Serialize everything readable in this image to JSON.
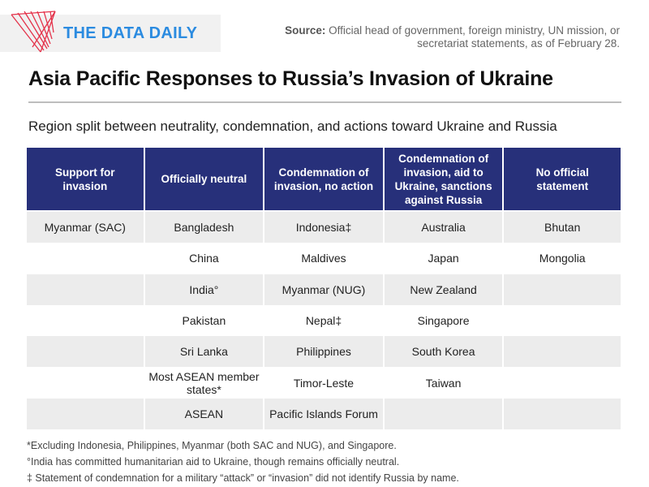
{
  "brand": {
    "name": "THE DATA DAILY"
  },
  "source": {
    "label": "Source:",
    "text": "Official head of government, foreign ministry, UN mission, or secretariat statements, as of February 28."
  },
  "title": "Asia Pacific Responses to Russia’s Invasion of Ukraine",
  "subtitle": "Region split between neutrality, condemnation, and actions toward Ukraine and Russia",
  "colors": {
    "header_bg": "#27307a",
    "brand_blue": "#2b8be0",
    "logo_red": "#e4324a",
    "row_shade": "#ececec"
  },
  "table": {
    "headers": [
      "Support for invasion",
      "Officially neutral",
      "Condemnation of invasion, no action",
      "Condemnation of invasion, aid to Ukraine, sanctions against Russia",
      "No official statement"
    ],
    "rows": [
      [
        "Myanmar (SAC)",
        "Bangladesh",
        "Indonesia‡",
        "Australia",
        "Bhutan"
      ],
      [
        "",
        "China",
        "Maldives",
        "Japan",
        "Mongolia"
      ],
      [
        "",
        "India°",
        "Myanmar (NUG)",
        "New Zealand",
        ""
      ],
      [
        "",
        "Pakistan",
        "Nepal‡",
        "Singapore",
        ""
      ],
      [
        "",
        "Sri Lanka",
        "Philippines",
        "South Korea",
        ""
      ],
      [
        "",
        "Most ASEAN member states*",
        "Timor-Leste",
        "Taiwan",
        ""
      ],
      [
        "",
        "ASEAN",
        "Pacific Islands Forum",
        "",
        ""
      ]
    ]
  },
  "footnotes": [
    "*Excluding Indonesia, Philippines, Myanmar (both SAC and NUG), and Singapore.",
    "°India has committed humanitarian aid to Ukraine, though remains officially neutral.",
    "‡ Statement of condemnation for a military “attack” or “invasion” did not identify Russia by name."
  ]
}
